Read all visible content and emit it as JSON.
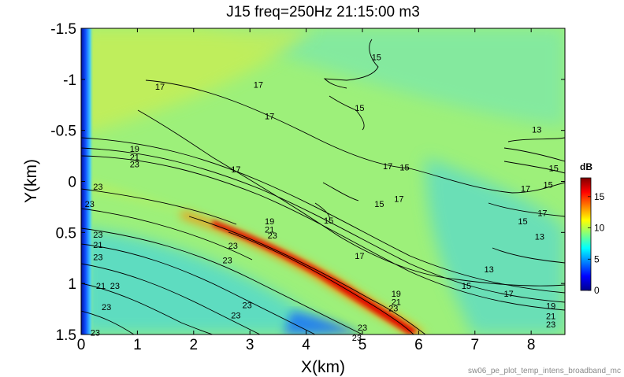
{
  "chart_data": {
    "type": "heatmap",
    "title": "J15 freq=250Hz 21:15:00 m3",
    "xlabel": "X(km)",
    "ylabel": "Y(km)",
    "xlim": [
      0,
      8.6
    ],
    "ylim": [
      -1.5,
      1.5
    ],
    "y_axis_reversed": true,
    "x_ticks": [
      "0",
      "1",
      "2",
      "3",
      "4",
      "5",
      "6",
      "7",
      "8"
    ],
    "y_ticks": [
      "-1.5",
      "-1",
      "-0.5",
      "0",
      "0.5",
      "1",
      "1.5"
    ],
    "colorbar": {
      "label": "dB",
      "range": [
        0,
        18
      ],
      "ticks": [
        "0",
        "5",
        "10",
        "15"
      ],
      "colormap": "jet"
    },
    "contour_levels": [
      13,
      15,
      17,
      19,
      21,
      23
    ],
    "contour_labels": [
      {
        "text": "15",
        "x": 5.25,
        "y": -1.22
      },
      {
        "text": "15",
        "x": 4.95,
        "y": -0.72
      },
      {
        "text": "17",
        "x": 1.4,
        "y": -0.93
      },
      {
        "text": "17",
        "x": 3.15,
        "y": -0.95
      },
      {
        "text": "17",
        "x": 3.35,
        "y": -0.64
      },
      {
        "text": "17",
        "x": 2.75,
        "y": -0.12
      },
      {
        "text": "17",
        "x": 5.45,
        "y": -0.15
      },
      {
        "text": "15",
        "x": 5.75,
        "y": -0.14
      },
      {
        "text": "17",
        "x": 5.65,
        "y": 0.17
      },
      {
        "text": "15",
        "x": 5.3,
        "y": 0.22
      },
      {
        "text": "15",
        "x": 4.4,
        "y": 0.38
      },
      {
        "text": "17",
        "x": 4.95,
        "y": 0.73
      },
      {
        "text": "13",
        "x": 8.1,
        "y": -0.51
      },
      {
        "text": "15",
        "x": 8.4,
        "y": -0.13
      },
      {
        "text": "17",
        "x": 7.9,
        "y": 0.07
      },
      {
        "text": "15",
        "x": 8.3,
        "y": 0.03
      },
      {
        "text": "17",
        "x": 8.2,
        "y": 0.31
      },
      {
        "text": "15",
        "x": 7.85,
        "y": 0.39
      },
      {
        "text": "13",
        "x": 8.15,
        "y": 0.54
      },
      {
        "text": "13",
        "x": 7.25,
        "y": 0.86
      },
      {
        "text": "15",
        "x": 6.85,
        "y": 1.02
      },
      {
        "text": "17",
        "x": 7.6,
        "y": 1.1
      },
      {
        "text": "19",
        "x": 0.95,
        "y": -0.32
      },
      {
        "text": "21",
        "x": 0.95,
        "y": -0.24
      },
      {
        "text": "23",
        "x": 0.95,
        "y": -0.17
      },
      {
        "text": "23",
        "x": 0.3,
        "y": 0.05
      },
      {
        "text": "23",
        "x": 0.15,
        "y": 0.22
      },
      {
        "text": "23",
        "x": 0.3,
        "y": 0.52
      },
      {
        "text": "21",
        "x": 0.3,
        "y": 0.62
      },
      {
        "text": "23",
        "x": 0.3,
        "y": 0.74
      },
      {
        "text": "21",
        "x": 0.35,
        "y": 1.02
      },
      {
        "text": "23",
        "x": 0.6,
        "y": 1.02
      },
      {
        "text": "23",
        "x": 0.45,
        "y": 1.23
      },
      {
        "text": "23",
        "x": 0.25,
        "y": 1.48
      },
      {
        "text": "19",
        "x": 3.35,
        "y": 0.39
      },
      {
        "text": "21",
        "x": 3.35,
        "y": 0.47
      },
      {
        "text": "23",
        "x": 3.4,
        "y": 0.53
      },
      {
        "text": "23",
        "x": 2.7,
        "y": 0.63
      },
      {
        "text": "23",
        "x": 2.6,
        "y": 0.77
      },
      {
        "text": "23",
        "x": 2.95,
        "y": 1.21
      },
      {
        "text": "23",
        "x": 2.75,
        "y": 1.31
      },
      {
        "text": "19",
        "x": 5.6,
        "y": 1.1
      },
      {
        "text": "21",
        "x": 5.6,
        "y": 1.18
      },
      {
        "text": "23",
        "x": 5.55,
        "y": 1.24
      },
      {
        "text": "23",
        "x": 5.0,
        "y": 1.43
      },
      {
        "text": "23",
        "x": 4.9,
        "y": 1.53
      },
      {
        "text": "19",
        "x": 8.35,
        "y": 1.22
      },
      {
        "text": "21",
        "x": 8.35,
        "y": 1.32
      },
      {
        "text": "23",
        "x": 8.35,
        "y": 1.4
      }
    ]
  },
  "footer": "sw06_pe_plot_temp_intens_broadband_mc"
}
